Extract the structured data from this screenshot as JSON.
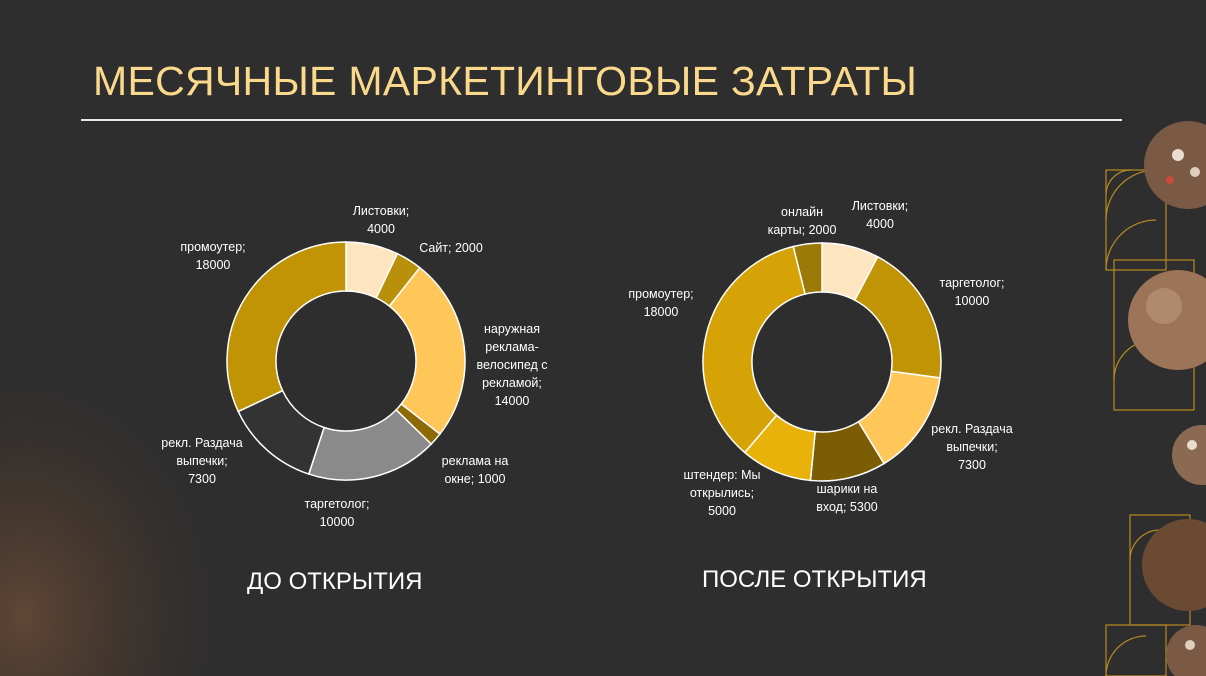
{
  "title": "МЕСЯЧНЫЕ МАРКЕТИНГОВЫЕ ЗАТРАТЫ",
  "captions": {
    "before": "ДО ОТКРЫТИЯ",
    "after": "ПОСЛЕ ОТКРЫТИЯ"
  },
  "chart_data": [
    {
      "type": "pie",
      "variant": "donut",
      "title": "",
      "slices": [
        {
          "label": "Листовки",
          "value": 4000,
          "color": "#fde5c0"
        },
        {
          "label": "Сайт",
          "value": 2000,
          "color": "#b8900a"
        },
        {
          "label": "наружная реклама-велосипед с рекламой",
          "value": 14000,
          "color": "#ffc75a"
        },
        {
          "label": "реклама на окне",
          "value": 1000,
          "color": "#8c6a06"
        },
        {
          "label": "таргетолог",
          "value": 10000,
          "color": "#8a8a8a"
        },
        {
          "label": "рекл. Раздача выпечки",
          "value": 7300,
          "color": "#333333"
        },
        {
          "label": "промоутер",
          "value": 18000,
          "color": "#c09404"
        }
      ],
      "data_labels": [
        [
          "Листовки;",
          "4000"
        ],
        [
          "Сайт; 2000"
        ],
        [
          "наружная",
          "реклама-",
          "велосипед с",
          "рекламой;",
          "14000"
        ],
        [
          "реклама на",
          "окне; 1000"
        ],
        [
          "таргетолог;",
          "10000"
        ],
        [
          "рекл. Раздача",
          "выпечки;",
          "7300"
        ],
        [
          "промоутер;",
          "18000"
        ]
      ]
    },
    {
      "type": "pie",
      "variant": "donut",
      "title": "",
      "slices": [
        {
          "label": "Листовки",
          "value": 4000,
          "color": "#fde5c0"
        },
        {
          "label": "таргетолог",
          "value": 10000,
          "color": "#c09404"
        },
        {
          "label": "рекл. Раздача выпечки",
          "value": 7300,
          "color": "#ffc75a"
        },
        {
          "label": "шарики на вход",
          "value": 5300,
          "color": "#7a5d05"
        },
        {
          "label": "штендер: Мы открылись",
          "value": 5000,
          "color": "#e8b20a"
        },
        {
          "label": "промоутер",
          "value": 18000,
          "color": "#d6a306"
        },
        {
          "label": "онлайн карты",
          "value": 2000,
          "color": "#9c7a08"
        }
      ],
      "data_labels": [
        [
          "Листовки;",
          "4000"
        ],
        [
          "таргетолог;",
          "10000"
        ],
        [
          "рекл. Раздача",
          "выпечки;",
          "7300"
        ],
        [
          "шарики на",
          "вход; 5300"
        ],
        [
          "штендер: Мы",
          "открылись;",
          "5000"
        ],
        [
          "промоутер;",
          "18000"
        ],
        [
          "онлайн",
          "карты; 2000"
        ]
      ]
    }
  ]
}
